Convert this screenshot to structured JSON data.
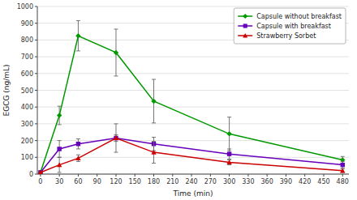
{
  "chart_data": {
    "type": "line",
    "xlabel": "Time (min)",
    "ylabel": "EGCG (ng/mL)",
    "x": [
      0,
      30,
      60,
      120,
      180,
      300,
      480
    ],
    "series": [
      {
        "name": "Capsule without breakfast",
        "color": "#009900",
        "marker": "diamond",
        "values": [
          10,
          350,
          825,
          725,
          435,
          240,
          85
        ],
        "errors": [
          0,
          55,
          90,
          140,
          130,
          100,
          20
        ]
      },
      {
        "name": "Capsule with breakfast",
        "color": "#6600bb",
        "marker": "square",
        "values": [
          10,
          150,
          180,
          215,
          180,
          120,
          55
        ],
        "errors": [
          0,
          50,
          30,
          85,
          40,
          30,
          20
        ]
      },
      {
        "name": "Strawberry Sorbet",
        "color": "#cc0000",
        "marker": "triangle",
        "values": [
          10,
          55,
          95,
          215,
          130,
          70,
          20
        ],
        "errors": [
          0,
          45,
          20,
          20,
          65,
          15,
          10
        ]
      }
    ],
    "xlim": [
      -5,
      490
    ],
    "ylim": [
      0,
      1000
    ],
    "xticks": [
      0,
      30,
      60,
      90,
      120,
      150,
      180,
      210,
      240,
      270,
      300,
      330,
      360,
      390,
      420,
      450,
      480
    ],
    "yticks": [
      0,
      100,
      200,
      300,
      400,
      500,
      600,
      700,
      800,
      900,
      1000
    ],
    "grid": "y",
    "legend": "upper right"
  }
}
